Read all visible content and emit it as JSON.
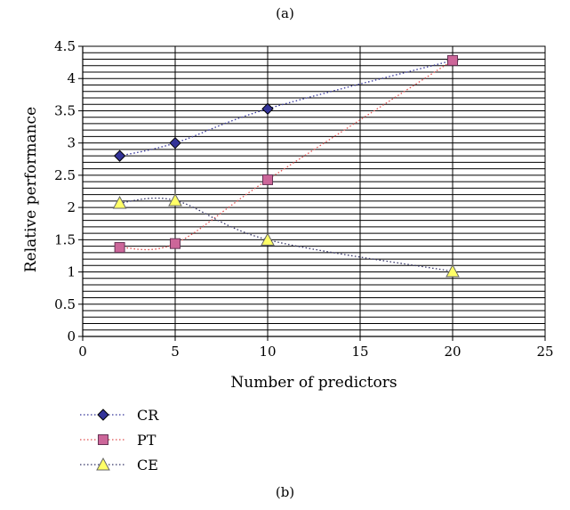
{
  "caption_top": "(a)",
  "caption_bottom": "(b)",
  "chart_data": {
    "type": "line",
    "xlabel": "Number of predictors",
    "ylabel": "Relative performance",
    "xlim": [
      0,
      25
    ],
    "ylim": [
      0,
      4.5
    ],
    "x_ticks": [
      "0",
      "5",
      "10",
      "15",
      "20",
      "25"
    ],
    "y_ticks": [
      "0",
      "0.5",
      "1",
      "1.5",
      "2",
      "2.5",
      "3",
      "3.5",
      "4",
      "4.5"
    ],
    "grid": "horizontal minor lines every 0.1; vertical major lines every 5",
    "line_style": "dotted, smoothed",
    "legend_position": "bottom-left",
    "series": [
      {
        "name": "CR",
        "marker": "diamond",
        "color": "#333399",
        "x": [
          2,
          5,
          10,
          20
        ],
        "y": [
          2.8,
          3.0,
          3.53,
          4.28
        ]
      },
      {
        "name": "PT",
        "marker": "square",
        "color": "#cc6699",
        "x": [
          2,
          5,
          10,
          20
        ],
        "y": [
          1.38,
          1.44,
          2.43,
          4.28
        ]
      },
      {
        "name": "CE",
        "marker": "triangle",
        "color": "#ffff66",
        "x": [
          2,
          5,
          10,
          20
        ],
        "y": [
          2.07,
          2.11,
          1.5,
          1.01
        ]
      }
    ]
  }
}
